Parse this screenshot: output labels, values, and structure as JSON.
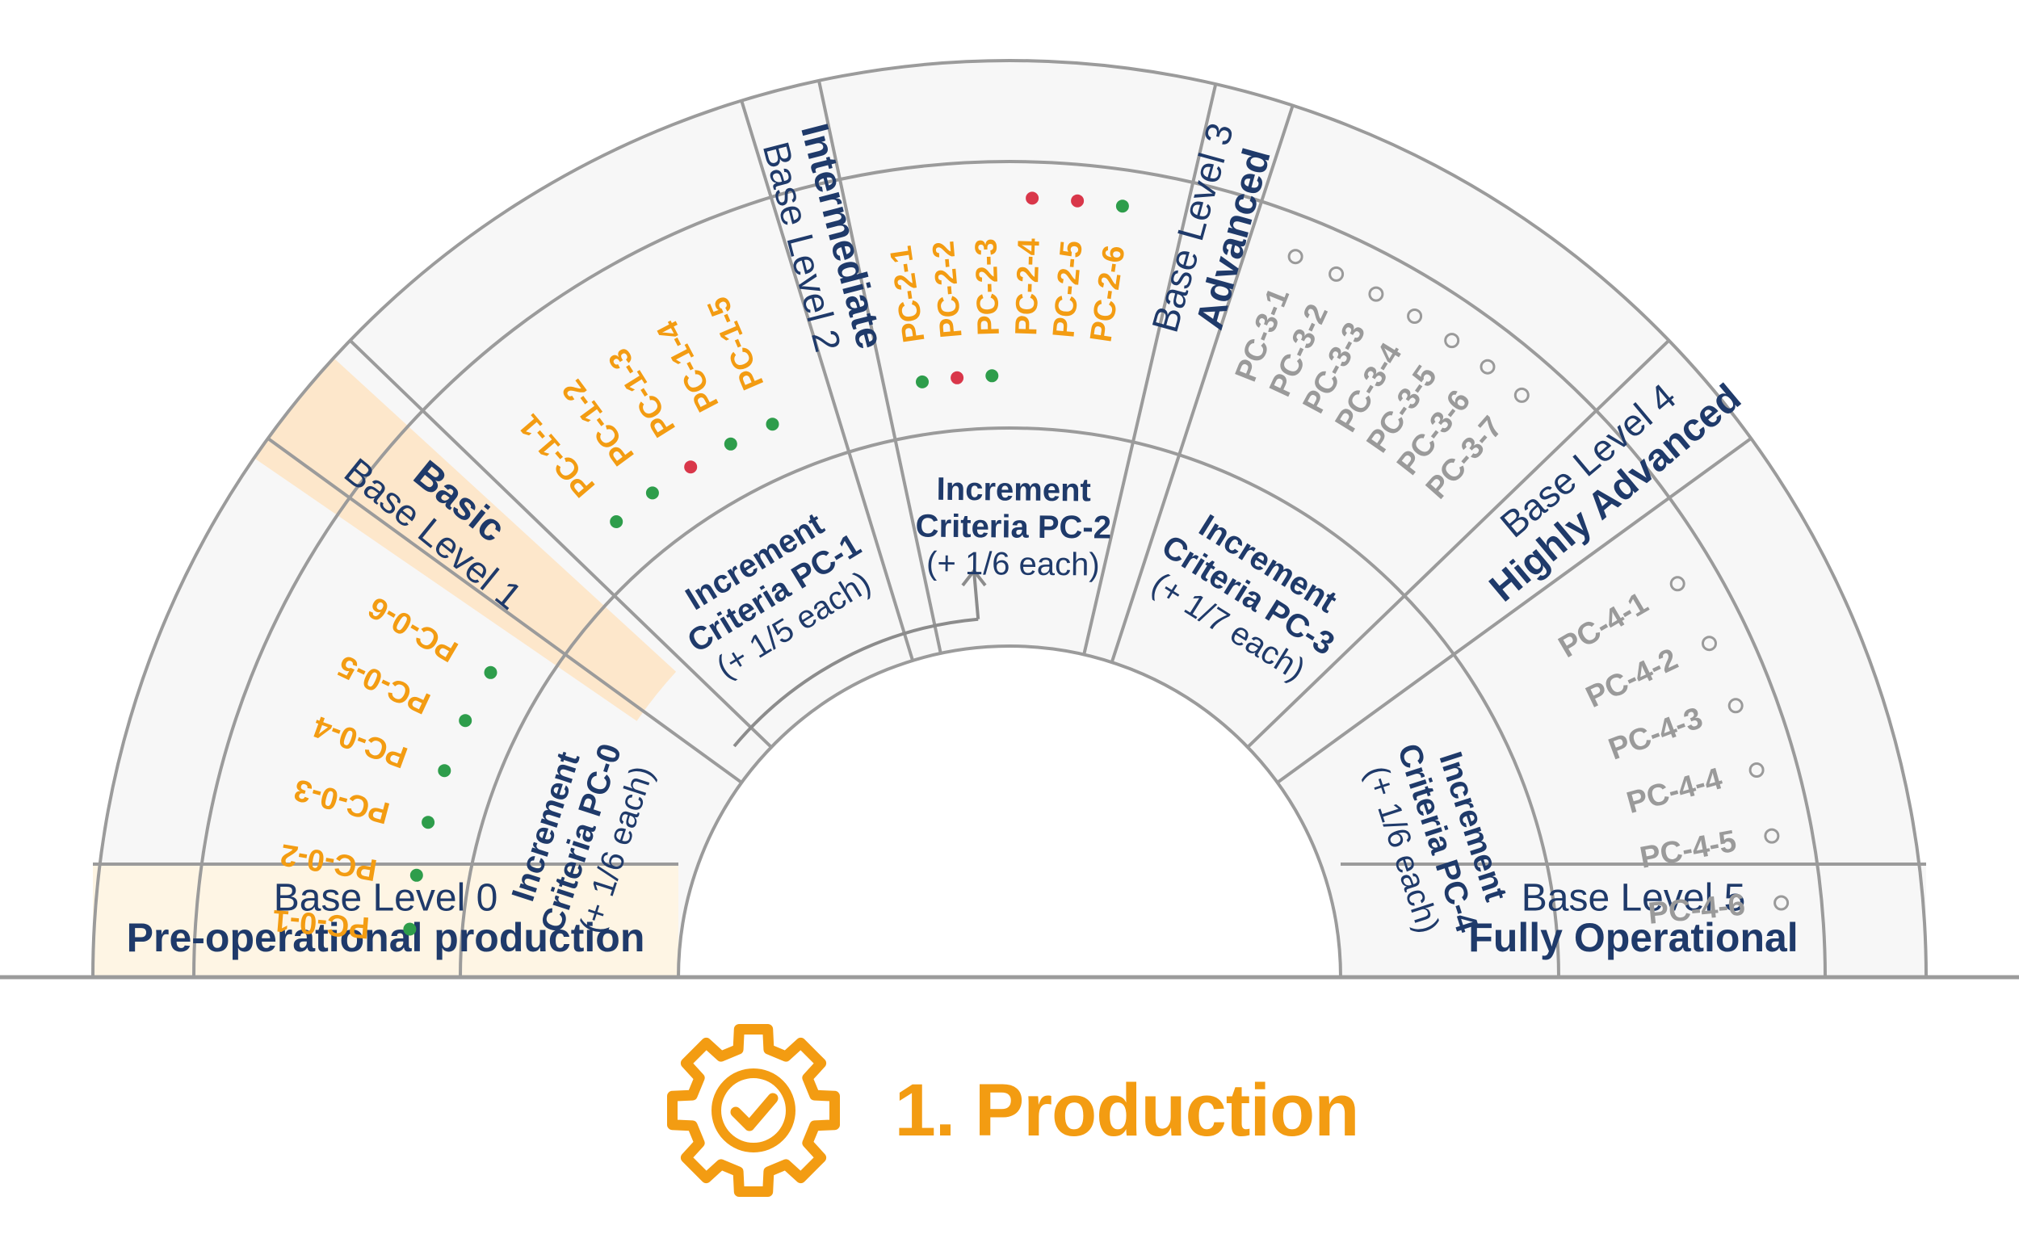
{
  "colors": {
    "navy": "#1F3A6A",
    "orange": "#F39C12",
    "green_dot": "#2E9D4B",
    "red_dot": "#D9374A",
    "gray_text": "#9A9A9A",
    "panel": "#F7F7F7",
    "line": "#9B9B9B",
    "highlight_level1": "#FDE7CB",
    "highlight_level0": "#FEF5E4"
  },
  "levels": [
    {
      "label": "Base Level 0",
      "name": "Pre-operational production"
    },
    {
      "label": "Base Level 1",
      "name": "Basic"
    },
    {
      "label": "Base Level 2",
      "name": "Intermediate"
    },
    {
      "label": "Base Level 3",
      "name": "Advanced"
    },
    {
      "label": "Base Level 4",
      "name": "Highly Advanced"
    },
    {
      "label": "Base Level 5",
      "name": "Fully Operational"
    }
  ],
  "increments": [
    {
      "line1": "Increment",
      "line2": "Criteria PC-0",
      "line3": "(+ 1/6 each)"
    },
    {
      "line1": "Increment",
      "line2": "Criteria PC-1",
      "line3": "(+ 1/5 each)"
    },
    {
      "line1": "Increment",
      "line2": "Criteria PC-2",
      "line3": "(+ 1/6 each)"
    },
    {
      "line1": "Increment",
      "line2": "Criteria PC-3",
      "line3": "(+ 1/7 each)"
    },
    {
      "line1": "Increment",
      "line2": "Criteria PC-4",
      "line3": "(+ 1/6 each)"
    }
  ],
  "criteria": [
    {
      "items": [
        "PC-0-1",
        "PC-0-2",
        "PC-0-3",
        "PC-0-4",
        "PC-0-5",
        "PC-0-6"
      ],
      "status": [
        "done",
        "done",
        "done",
        "done",
        "done",
        "done"
      ]
    },
    {
      "items": [
        "PC-1-1",
        "PC-1-2",
        "PC-1-3",
        "PC-1-4",
        "PC-1-5"
      ],
      "status": [
        "done",
        "done",
        "failed",
        "done",
        "done"
      ]
    },
    {
      "items": [
        "PC-2-1",
        "PC-2-2",
        "PC-2-3",
        "PC-2-4",
        "PC-2-5",
        "PC-2-6"
      ],
      "status": [
        "done",
        "failed",
        "done",
        "failed",
        "failed",
        "done"
      ]
    },
    {
      "items": [
        "PC-3-1",
        "PC-3-2",
        "PC-3-3",
        "PC-3-4",
        "PC-3-5",
        "PC-3-6",
        "PC-3-7"
      ],
      "status": [
        "open",
        "open",
        "open",
        "open",
        "open",
        "open",
        "open"
      ]
    },
    {
      "items": [
        "PC-4-1",
        "PC-4-2",
        "PC-4-3",
        "PC-4-4",
        "PC-4-5",
        "PC-4-6"
      ],
      "status": [
        "open",
        "open",
        "open",
        "open",
        "open",
        "open"
      ]
    }
  ],
  "footer": {
    "title": "1. Production",
    "icon": "gear-check-icon"
  }
}
